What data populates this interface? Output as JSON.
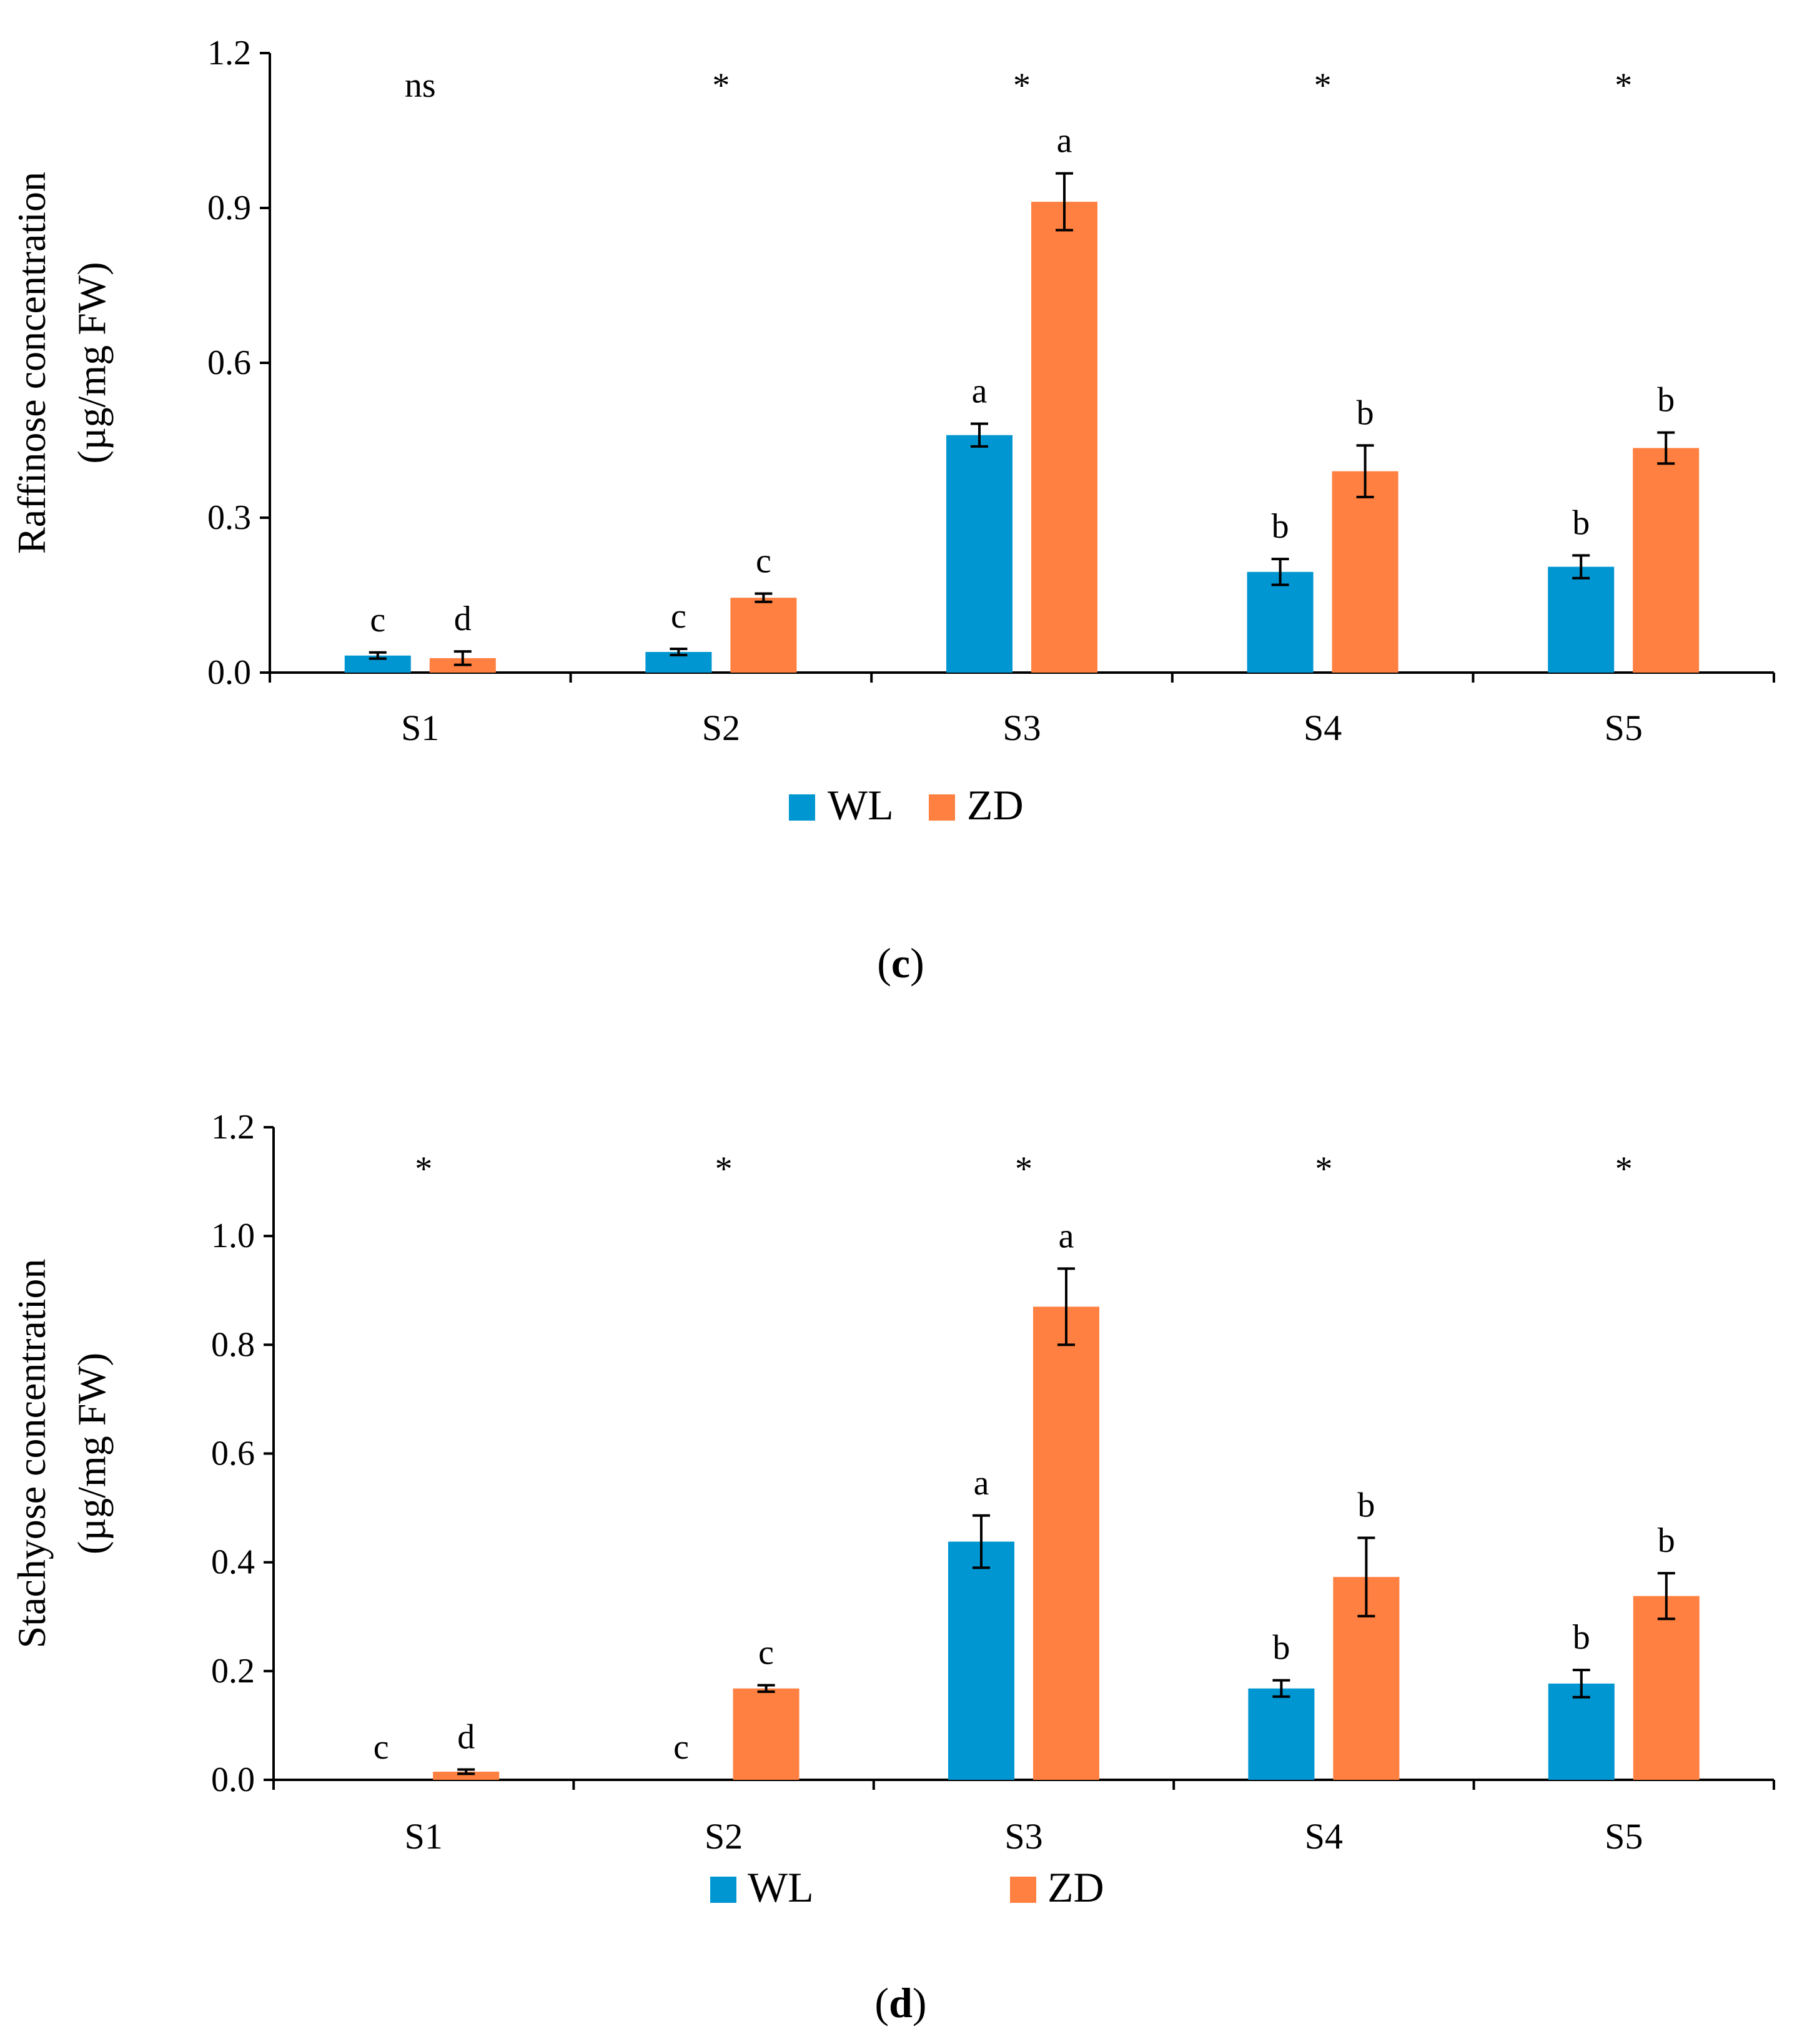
{
  "chart_data": [
    {
      "type": "bar",
      "panel_label": "c",
      "categories": [
        "S1",
        "S2",
        "S3",
        "S4",
        "S5"
      ],
      "ylabel_line1": "Raffinose concentration",
      "ylabel_line2": "(µg/mg FW)",
      "ylim": [
        0,
        1.2
      ],
      "yticks": [
        "0.0",
        "0.3",
        "0.6",
        "0.9",
        "1.2"
      ],
      "ytick_values": [
        0,
        0.3,
        0.6,
        0.9,
        1.2
      ],
      "significance": [
        "ns",
        "*",
        "*",
        "*",
        "*"
      ],
      "legend_position": "bottom-center",
      "series": [
        {
          "name": "WL",
          "color": "#0096D1",
          "values": [
            0.033,
            0.04,
            0.46,
            0.195,
            0.205
          ],
          "errors": [
            0.006,
            0.006,
            0.022,
            0.025,
            0.022
          ],
          "letters": [
            "c",
            "c",
            "a",
            "b",
            "b"
          ]
        },
        {
          "name": "ZD",
          "color": "#FF8040",
          "values": [
            0.028,
            0.145,
            0.912,
            0.39,
            0.435
          ],
          "errors": [
            0.013,
            0.008,
            0.055,
            0.05,
            0.03
          ],
          "letters": [
            "d",
            "c",
            "a",
            "b",
            "b"
          ]
        }
      ]
    },
    {
      "type": "bar",
      "panel_label": "d",
      "categories": [
        "S1",
        "S2",
        "S3",
        "S4",
        "S5"
      ],
      "ylabel_line1": "Stachyose concentration",
      "ylabel_line2": "(µg/mg FW)",
      "ylim": [
        0,
        1.2
      ],
      "yticks": [
        "0.0",
        "0.2",
        "0.4",
        "0.6",
        "0.8",
        "1.0",
        "1.2"
      ],
      "ytick_values": [
        0,
        0.2,
        0.4,
        0.6,
        0.8,
        1.0,
        1.2
      ],
      "significance": [
        "*",
        "*",
        "*",
        "*",
        "*"
      ],
      "legend_position": "bottom-center",
      "series": [
        {
          "name": "WL",
          "color": "#0096D1",
          "values": [
            0.0,
            0.0,
            0.438,
            0.168,
            0.177
          ],
          "errors": [
            0.0,
            0.0,
            0.048,
            0.015,
            0.025
          ],
          "letters": [
            "c",
            "c",
            "a",
            "b",
            "b"
          ]
        },
        {
          "name": "ZD",
          "color": "#FF8040",
          "values": [
            0.015,
            0.168,
            0.87,
            0.373,
            0.338
          ],
          "errors": [
            0.004,
            0.006,
            0.07,
            0.072,
            0.042
          ],
          "letters": [
            "d",
            "c",
            "a",
            "b",
            "b"
          ]
        }
      ]
    }
  ]
}
